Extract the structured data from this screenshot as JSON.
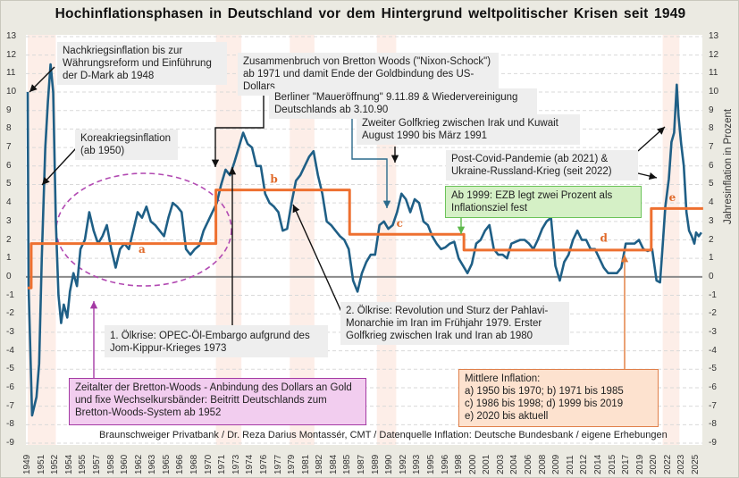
{
  "chart_data": {
    "type": "line",
    "title": "Hochinflationsphasen in Deutschland vor dem Hintergrund weltpolitischer Krisen seit 1949",
    "ylabel": "Jahresinflation in Prozent",
    "ylim": [
      -9,
      13
    ],
    "xlim": [
      1949,
      2025.8
    ],
    "grid": true,
    "yticks": [
      13,
      12,
      11,
      10,
      9,
      8,
      7,
      6,
      5,
      4,
      3,
      2,
      1,
      0,
      -1,
      -2,
      -3,
      -4,
      -5,
      -6,
      -7,
      -8,
      -9
    ],
    "xticks": [
      "1949",
      "1951",
      "1952",
      "1954",
      "1955",
      "1957",
      "1958",
      "1960",
      "1962",
      "1963",
      "1965",
      "1966",
      "1968",
      "1970",
      "1971",
      "1973",
      "1974",
      "1976",
      "1977",
      "1979",
      "1981",
      "1982",
      "1984",
      "1985",
      "1987",
      "1989",
      "1990",
      "1992",
      "1993",
      "1995",
      "1996",
      "1998",
      "2000",
      "2001",
      "2003",
      "2004",
      "2006",
      "2008",
      "2009",
      "2011",
      "2012",
      "2014",
      "2015",
      "2017",
      "2019",
      "2020",
      "2022",
      "2023",
      "2025"
    ],
    "shaded_periods": [
      [
        1949,
        1952.2
      ],
      [
        1970.4,
        1973.3
      ],
      [
        1978.8,
        1981.6
      ],
      [
        1988.7,
        1990.9
      ],
      [
        2021.2,
        2023.1
      ]
    ],
    "series": [
      {
        "kind": "inflation",
        "color": "#1f5f86",
        "x": [
          1949,
          1949.1,
          1949.5,
          1950,
          1950.3,
          1950.6,
          1951,
          1951.3,
          1951.6,
          1951.9,
          1952.2,
          1952.5,
          1952.8,
          1953.1,
          1953.5,
          1953.8,
          1954.2,
          1954.6,
          1955,
          1955.5,
          1956,
          1956.5,
          1957,
          1957.5,
          1958,
          1958.5,
          1959,
          1959.5,
          1960,
          1960.5,
          1961,
          1961.5,
          1962,
          1962.5,
          1963,
          1963.5,
          1964,
          1964.5,
          1965,
          1965.5,
          1966,
          1966.5,
          1967,
          1967.5,
          1968,
          1968.5,
          1969,
          1969.5,
          1970,
          1970.5,
          1971,
          1971.5,
          1972,
          1972.5,
          1973,
          1973.5,
          1974,
          1974.5,
          1975,
          1975.5,
          1976,
          1976.5,
          1977,
          1977.5,
          1978,
          1978.5,
          1979,
          1979.5,
          1980,
          1980.5,
          1981,
          1981.5,
          1982,
          1982.5,
          1983,
          1983.5,
          1984,
          1984.5,
          1985,
          1985.5,
          1986,
          1986.5,
          1987,
          1987.5,
          1988,
          1988.5,
          1989,
          1989.5,
          1990,
          1990.5,
          1991,
          1991.5,
          1992,
          1992.5,
          1993,
          1993.5,
          1994,
          1994.5,
          1995,
          1995.5,
          1996,
          1996.5,
          1997,
          1997.5,
          1998,
          1998.5,
          1999,
          1999.5,
          2000,
          2000.5,
          2001,
          2001.5,
          2002,
          2002.5,
          2003,
          2003.5,
          2004,
          2004.5,
          2005,
          2005.5,
          2006,
          2006.5,
          2007,
          2007.5,
          2008,
          2008.5,
          2009,
          2009.5,
          2010,
          2010.5,
          2011,
          2011.5,
          2012,
          2012.5,
          2013,
          2013.5,
          2014,
          2014.5,
          2015,
          2015.5,
          2016,
          2016.5,
          2017,
          2017.5,
          2018,
          2018.5,
          2019,
          2019.5,
          2020,
          2020.5,
          2020.9,
          2021.2,
          2021.5,
          2021.9,
          2022.2,
          2022.5,
          2022.8,
          2023,
          2023.3,
          2023.6,
          2023.9,
          2024.2,
          2024.5,
          2024.8,
          2025,
          2025.3,
          2025.6
        ],
        "y": [
          10,
          -0.5,
          -7.5,
          -6.5,
          -4.7,
          1,
          7,
          9.5,
          11.5,
          10,
          3,
          -1,
          -2.5,
          -1.5,
          -2.2,
          -0.8,
          0.2,
          -0.5,
          1.5,
          2,
          3.5,
          2.5,
          1.8,
          2.2,
          2.8,
          1.5,
          0.5,
          1.5,
          1.8,
          1.5,
          2.5,
          3.5,
          3.2,
          3.8,
          3,
          2.8,
          2.5,
          2.2,
          3.2,
          4,
          3.8,
          3.5,
          1.5,
          1.2,
          1.5,
          1.7,
          2.5,
          3,
          3.5,
          4,
          5,
          5.8,
          5.5,
          6.2,
          7,
          7.8,
          7.2,
          7,
          6,
          6,
          4.5,
          4,
          3.8,
          3.5,
          2.5,
          2.6,
          4,
          5.2,
          5.5,
          6,
          6.5,
          6.8,
          5.5,
          4.5,
          3,
          2.8,
          2.5,
          2.2,
          2,
          1.5,
          -0.2,
          -0.8,
          0.2,
          0.8,
          1.2,
          1.2,
          2.8,
          3,
          2.6,
          2.8,
          3.5,
          4.5,
          4.2,
          3.5,
          4.2,
          4,
          3,
          2.8,
          2.2,
          1.8,
          1.5,
          1.6,
          1.8,
          1.9,
          1,
          0.6,
          0.2,
          0.7,
          1.8,
          2,
          2.5,
          2.8,
          1.5,
          1.2,
          1.2,
          1,
          1.8,
          1.9,
          2,
          2,
          1.8,
          1.5,
          2,
          2.6,
          3,
          3.2,
          0.6,
          -0.2,
          0.8,
          1.2,
          2,
          2.5,
          2,
          2,
          1.5,
          1.5,
          1,
          0.5,
          0.2,
          0.2,
          0.2,
          0.5,
          1.8,
          1.8,
          1.8,
          2,
          1.5,
          1.4,
          1.5,
          -0.2,
          -0.3,
          1.7,
          3.8,
          5.3,
          7.3,
          7.8,
          10.4,
          8.7,
          7.2,
          6,
          3.5,
          2.5,
          2.2,
          1.8,
          2.4,
          2.2,
          2.4
        ]
      },
      {
        "kind": "mean",
        "color": "#ee7030",
        "x": [
          1949,
          1949.4,
          1949.4,
          1970.4,
          1970.4,
          1985.6,
          1985.6,
          1998.6,
          1998.6,
          2019.9,
          2019.9,
          2025.8
        ],
        "y": [
          -0.6,
          -0.6,
          1.8,
          1.8,
          4.7,
          4.7,
          2.3,
          2.3,
          1.45,
          1.45,
          3.7,
          3.7
        ]
      }
    ],
    "period_labels": [
      {
        "label": "a",
        "x": 1962,
        "y": 1.3
      },
      {
        "label": "b",
        "x": 1977,
        "y": 5.1
      },
      {
        "label": "c",
        "x": 1991.3,
        "y": 2.7
      },
      {
        "label": "d",
        "x": 2014.5,
        "y": 1.9
      },
      {
        "label": "e",
        "x": 2022.3,
        "y": 4.1
      }
    ]
  },
  "annotations": {
    "nachkrieg": "Nachkriegsinflation bis zur Währungsreform und Einführung der D-Mark ab 1948",
    "korea": "Koreakriegsinflation (ab 1950)",
    "bretton_end": "Zusammenbruch von Bretton Woods (\"Nixon-Schock\") ab 1971 und damit Ende der Goldbindung des US-Dollars",
    "mauer": "Berliner \"Maueröffnung\"  9.11.89 & Wiedervereinigung Deutschlands ab 3.10.90",
    "golf2": "Zweiter Golfkrieg zwischen Irak und Kuwait August 1990 bis März 1991",
    "covid": "Post-Covid-Pandemie (ab 2021) & Ukraine-Russland-Krieg (seit 2022)",
    "ezb": "Ab 1999: EZB legt zwei Prozent als Inflationsziel fest",
    "oel1": "1. Ölkrise: OPEC-Öl-Embargo aufgrund des Jom-Kippur-Krieges 1973",
    "oel2": "2. Ölkrise: Revolution und Sturz der Pahlavi-Monarchie im Iran im Frühjahr 1979. Erster Golfkrieg zwischen Irak und Iran ab 1980",
    "bretton": "Zeitalter der Bretton-Woods - Anbindung des Dollars an Gold und fixe Wechselkursbänder: Beitritt Deutschlands zum Bretton-Woods-System ab 1952",
    "mittlere_title": "Mittlere Inflation:",
    "mittlere_lines": [
      "a) 1950 bis 1970; b) 1971 bis 1985",
      "c) 1986 bis 1998; d) 1999 bis 2019",
      "e) 2020 bis aktuell"
    ]
  },
  "credit": "Braunschweiger Privatbank / Dr. Reza Darius Montassér, CMT / Datenquelle Inflation:  Deutsche Bundesbank / eigene Erhebungen"
}
